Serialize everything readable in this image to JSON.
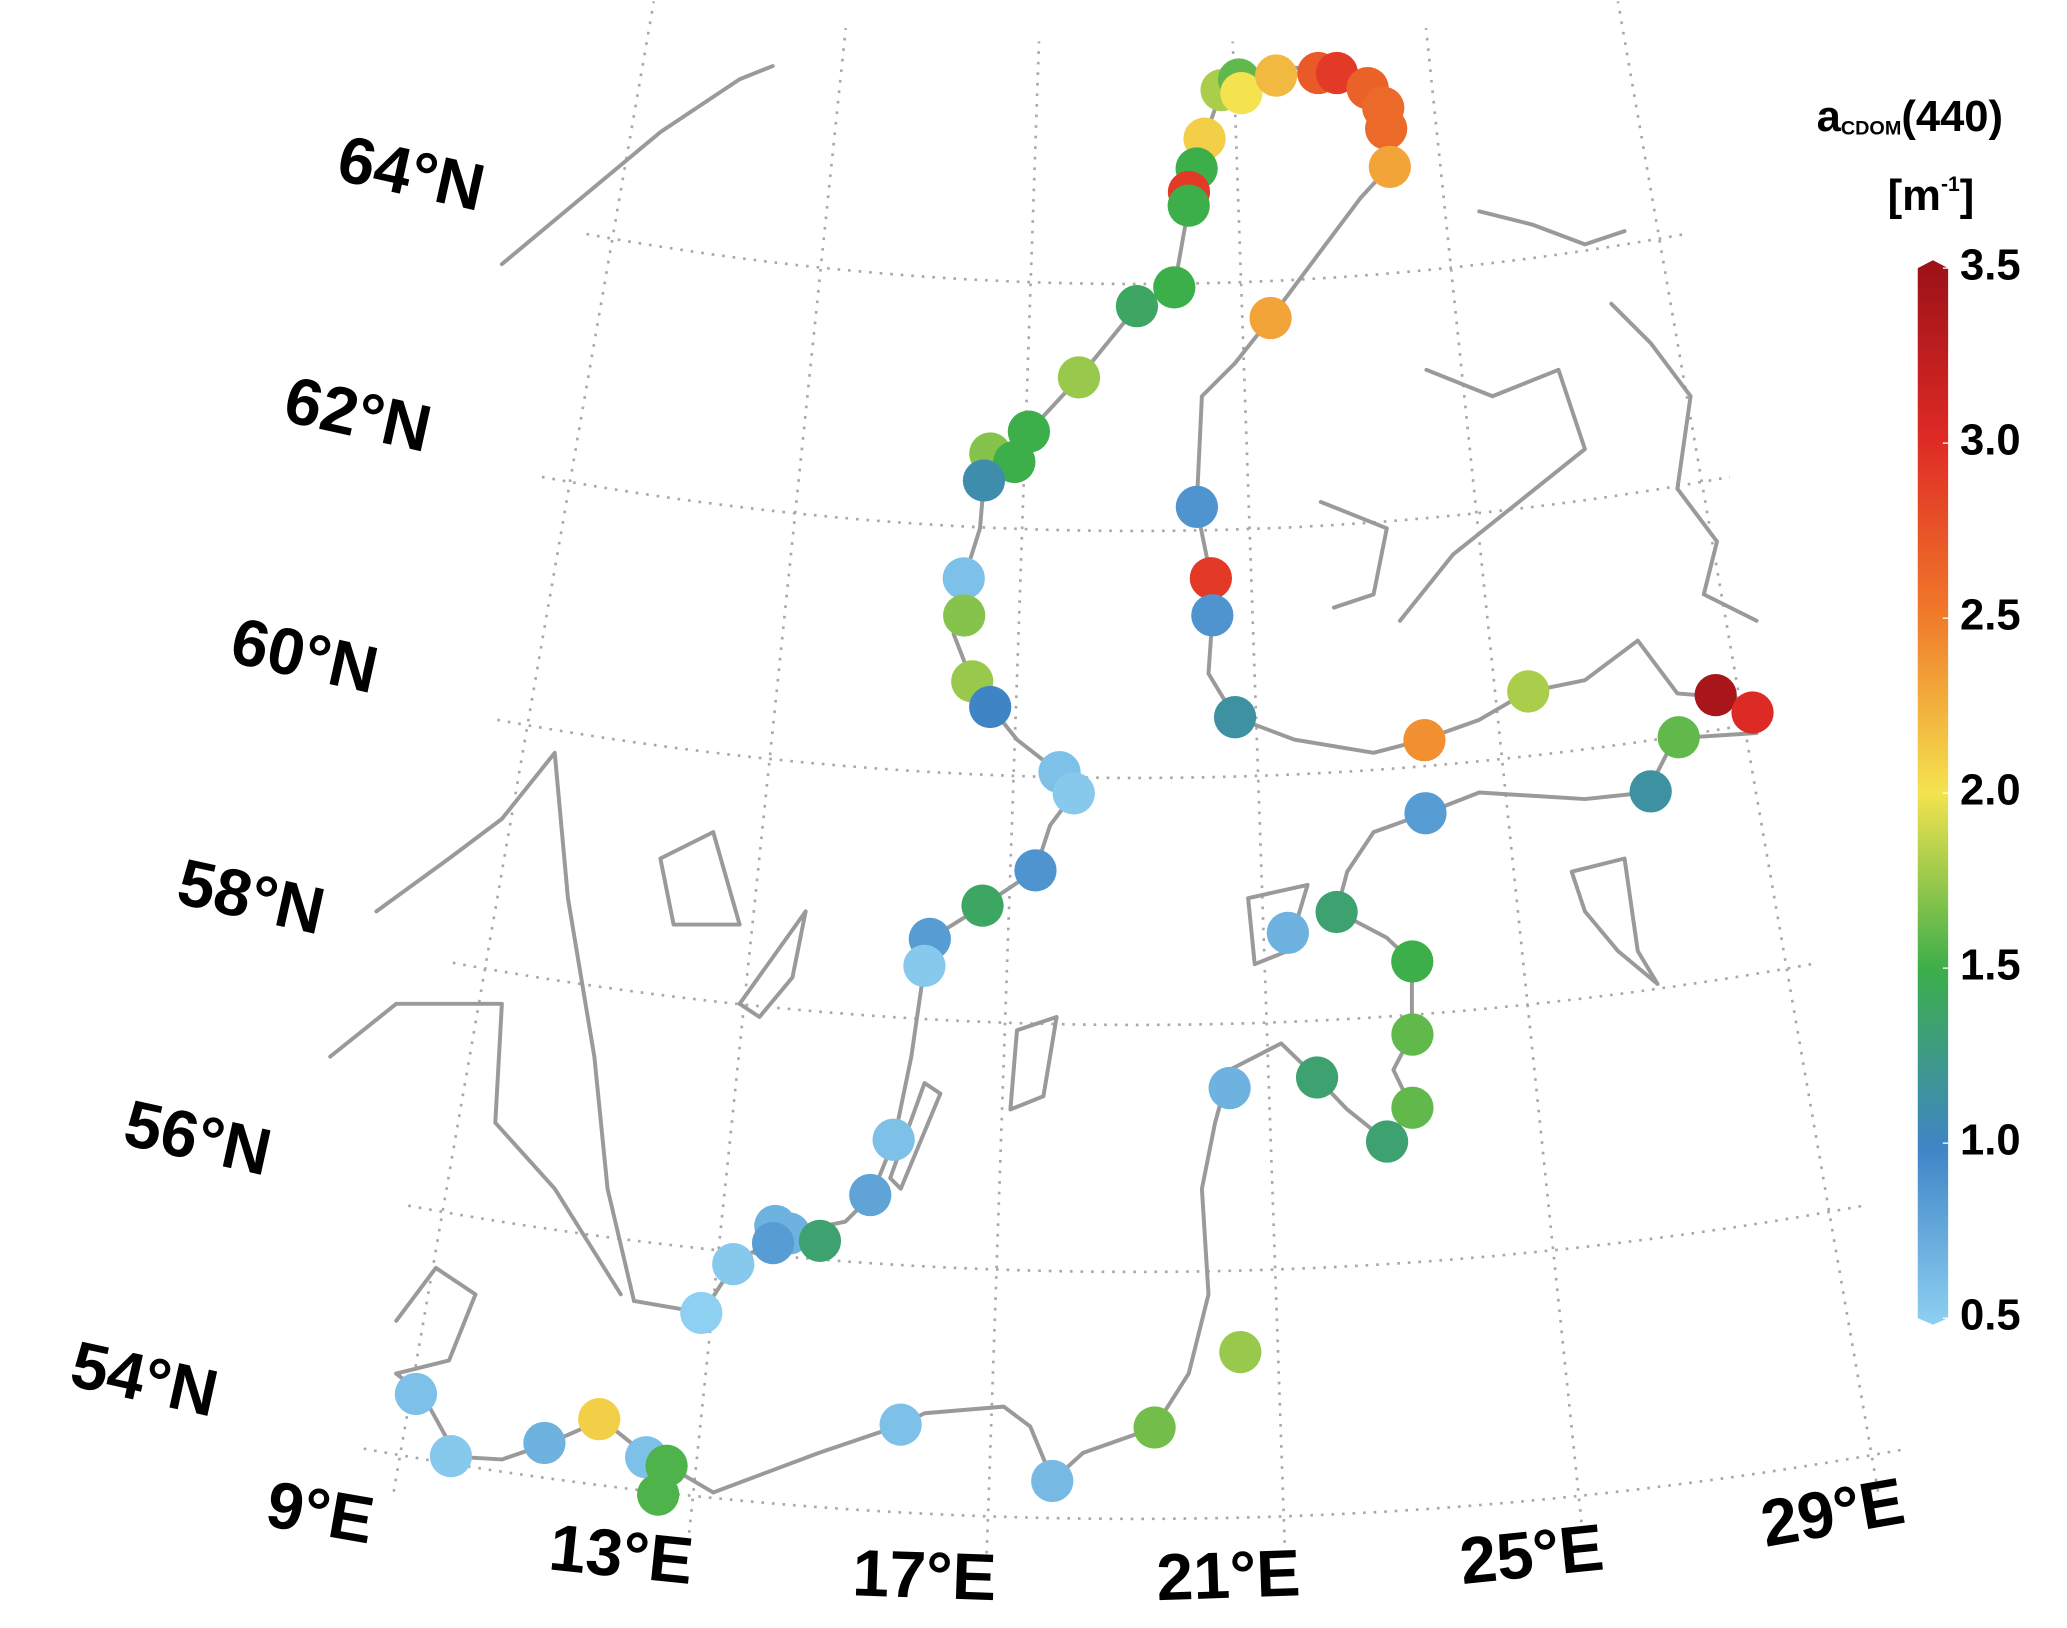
{
  "chart_data": {
    "type": "map",
    "colorbar_title": {
      "main": "a",
      "sub": "CDOM",
      "rest": "(440)"
    },
    "colorbar_unit": {
      "open": "[m",
      "sup": "-1",
      "close": "]"
    },
    "lat_ticks": [
      {
        "value": 54,
        "label": "54°N"
      },
      {
        "value": 56,
        "label": "56°N"
      },
      {
        "value": 58,
        "label": "58°N"
      },
      {
        "value": 60,
        "label": "60°N"
      },
      {
        "value": 62,
        "label": "62°N"
      },
      {
        "value": 64,
        "label": "64°N"
      }
    ],
    "lon_ticks": [
      {
        "value": 9,
        "label": "9°E"
      },
      {
        "value": 13,
        "label": "13°E"
      },
      {
        "value": 17,
        "label": "17°E"
      },
      {
        "value": 21,
        "label": "21°E"
      },
      {
        "value": 25,
        "label": "25°E"
      },
      {
        "value": 29,
        "label": "29°E"
      }
    ],
    "clim": [
      0.5,
      3.5
    ],
    "cticks": [
      0.5,
      {
        "value": 1,
        "label": "1.0"
      },
      1.5,
      {
        "value": 2,
        "label": "2.0"
      },
      2.5,
      {
        "value": 3,
        "label": "3.0"
      },
      3.5
    ],
    "colormap": [
      "#8ed0f1",
      "#3f85c6",
      "#3cae4a",
      "#f4e34e",
      "#f07a2a",
      "#de2a25",
      "#9a1117"
    ],
    "lon": [
      20.74,
      21.1,
      21.14,
      21.86,
      22.72,
      23.1,
      23.7,
      23.98,
      24.0,
      24.01,
      20.37,
      20.2,
      20.04,
      20.03,
      19.73,
      19.02,
      21.53,
      17.95,
      17.06,
      16.38,
      16.82,
      16.29,
      20.08,
      16.02,
      20.3,
      16.06,
      20.31,
      16.25,
      16.57,
      20.65,
      23.76,
      25.55,
      28.62,
      29.17,
      27.91,
      27.33,
      17.75,
      17.99,
      23.68,
      17.4,
      16.58,
      15.78,
      15.72,
      21.38,
      22.16,
      23.29,
      23.21,
      21.73,
      20.41,
      23.13,
      22.72,
      15.41,
      15.12,
      13.78,
      13.99,
      13.77,
      14.44,
      13.23,
      12.85,
      20.47,
      9.07,
      11.61,
      15.75,
      19.26,
      9.68,
      10.91,
      12.31,
      12.6,
      12.53,
      17.86
    ],
    "lat": [
      65.56,
      65.64,
      65.53,
      65.66,
      65.66,
      65.65,
      65.51,
      65.34,
      65.17,
      64.86,
      65.17,
      64.93,
      64.74,
      64.63,
      63.97,
      63.82,
      63.7,
      63.24,
      62.79,
      62.6,
      62.54,
      62.38,
      62.19,
      61.58,
      61.61,
      61.28,
      61.31,
      60.75,
      60.55,
      60.48,
      60.21,
      60.52,
      60.28,
      60.09,
      59.99,
      59.59,
      60.04,
      59.87,
      59.62,
      59.24,
      58.94,
      58.65,
      58.43,
      58.72,
      58.87,
      58.43,
      57.84,
      57.54,
      57.48,
      57.25,
      56.99,
      57.01,
      56.55,
      56.24,
      56.19,
      56.1,
      56.15,
      55.9,
      55.48,
      55.34,
      54.51,
      54.53,
      54.71,
      54.74,
      54.06,
      54.28,
      54.27,
      54.22,
      53.98,
      54.3
    ],
    "values": [
      1.8,
      1.6,
      2.0,
      2.2,
      2.7,
      2.9,
      2.65,
      2.6,
      2.6,
      2.3,
      2.1,
      1.5,
      2.9,
      1.5,
      1.5,
      1.4,
      2.3,
      1.75,
      1.5,
      1.7,
      1.5,
      1.1,
      0.9,
      0.6,
      2.9,
      1.7,
      0.9,
      1.75,
      1.0,
      1.15,
      2.4,
      1.8,
      3.4,
      3.0,
      1.6,
      1.15,
      0.6,
      0.55,
      0.85,
      0.9,
      1.4,
      0.85,
      0.55,
      0.7,
      1.35,
      1.5,
      1.6,
      1.35,
      0.7,
      1.6,
      1.35,
      0.6,
      0.8,
      0.7,
      0.7,
      0.85,
      1.35,
      0.55,
      0.5,
      1.75,
      0.6,
      2.1,
      0.6,
      1.65,
      0.55,
      0.7,
      0.6,
      1.55,
      1.55,
      0.65
    ]
  }
}
